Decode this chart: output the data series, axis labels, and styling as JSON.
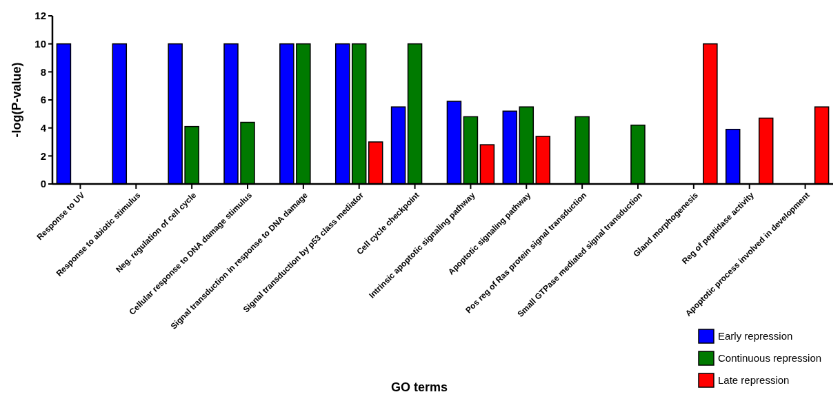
{
  "chart_data": {
    "type": "bar",
    "xlabel": "GO terms",
    "ylabel": "-log(P-value)",
    "categories": [
      "Response to UV",
      "Response to abiotic stimulus",
      "Neg. regulation of cell cycle",
      "Cellular response to DNA damage stimulus",
      "Signal transduction in response to DNA damage",
      "Signal transduction by p53 class mediator",
      "Cell cycle checkpoint",
      "Intrinsic apoptotic signaling pathway",
      "Apoptotic signaling pathway",
      "Pos reg of Ras protein signal transduction",
      "Small GTPase mediated signal transduction",
      "Gland morphogenesis",
      "Reg of peptidase activity",
      "Apoptotic process involved in development"
    ],
    "series": [
      {
        "name": "Early repression",
        "color": "#0000ff",
        "values": [
          10,
          10,
          10,
          10,
          10,
          10,
          5.5,
          5.9,
          5.2,
          null,
          null,
          null,
          3.9,
          null
        ]
      },
      {
        "name": "Continuous repression",
        "color": "#007a00",
        "values": [
          null,
          null,
          4.1,
          4.4,
          10,
          10,
          10,
          4.8,
          5.5,
          4.8,
          4.2,
          null,
          null,
          null
        ]
      },
      {
        "name": "Late repression",
        "color": "#ff0000",
        "values": [
          null,
          null,
          null,
          null,
          null,
          3.0,
          null,
          2.8,
          3.4,
          null,
          null,
          10,
          4.7,
          5.5
        ]
      }
    ],
    "ylim": [
      0,
      12
    ],
    "yticks": [
      0,
      2,
      4,
      6,
      8,
      10,
      12
    ],
    "grid": false,
    "legend": "bottom right"
  }
}
